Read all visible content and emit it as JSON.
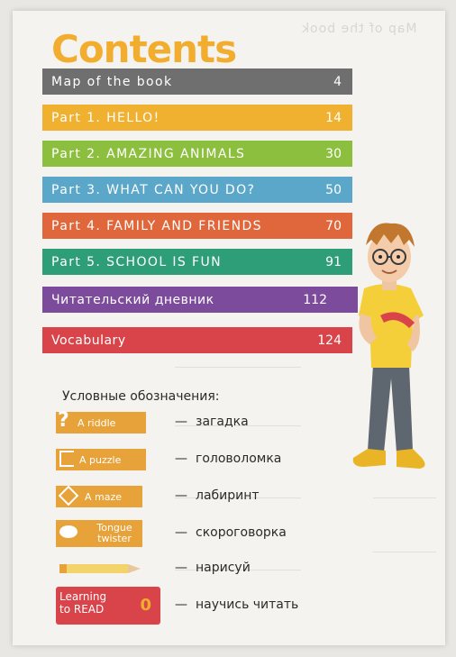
{
  "title": "Contents",
  "ghost_header": "Map of the book",
  "toc": [
    {
      "label": "Map of the book",
      "page": "4",
      "color": "#6f6f6f"
    },
    {
      "label": "Part 1. HELLO!",
      "page": "14",
      "color": "#f0b030"
    },
    {
      "label": "Part 2. AMAZING ANIMALS",
      "page": "30",
      "color": "#8dbf3f"
    },
    {
      "label": "Part 3. WHAT CAN YOU DO?",
      "page": "50",
      "color": "#5aa7c9"
    },
    {
      "label": "Part 4. FAMILY AND FRIENDS",
      "page": "70",
      "color": "#e0673c"
    },
    {
      "label": "Part 5. SCHOOL IS FUN",
      "page": "91",
      "color": "#2e9e78"
    },
    {
      "label": "Читательский дневник",
      "page": "112",
      "color": "#7d4b9c"
    },
    {
      "label": "Vocabulary",
      "page": "124",
      "color": "#d9434a"
    }
  ],
  "legend": {
    "title": "Условные обозначения:",
    "items": [
      {
        "badge": "A riddle",
        "icon": "question-icon",
        "meaning": "загадка"
      },
      {
        "badge": "A puzzle",
        "icon": "puzzle-piece-icon",
        "meaning": "головоломка"
      },
      {
        "badge": "A maze",
        "icon": "maze-icon",
        "meaning": "лабиринт"
      },
      {
        "badge_line1": "Tongue",
        "badge_line2": "twister",
        "icon": "lips-icon",
        "meaning": "скороговорка"
      },
      {
        "badge": "",
        "icon": "pencil-icon",
        "meaning": "нарисуй"
      },
      {
        "badge_line1": "Learning",
        "badge_line2": "to READ",
        "badge_number": "0",
        "icon": "open-book-icon",
        "meaning": "научись читать"
      }
    ],
    "dash": "—"
  }
}
